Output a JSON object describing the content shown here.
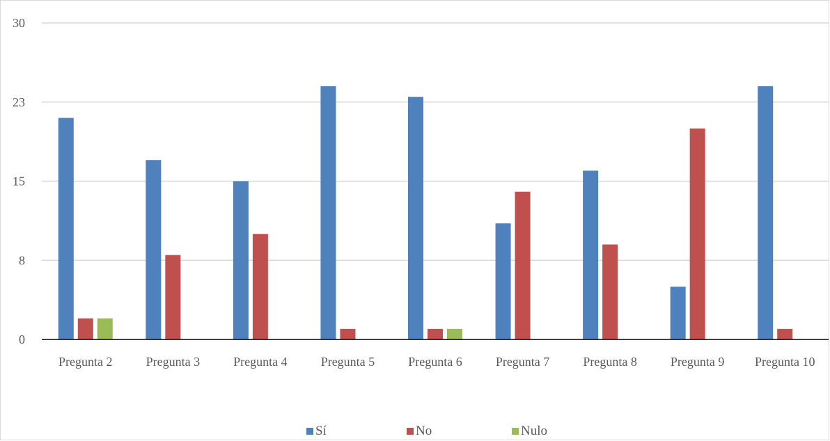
{
  "chart_data": {
    "type": "bar",
    "categories": [
      "Pregunta 2",
      "Pregunta 3",
      "Pregunta 4",
      "Pregunta 5",
      "Pregunta 6",
      "Pregunta 7",
      "Pregunta 8",
      "Pregunta 9",
      "Pregunta 10"
    ],
    "series": [
      {
        "name": "Sí",
        "color": "#4F81BD",
        "values": [
          21,
          17,
          15,
          24,
          23,
          11,
          16,
          5,
          24
        ]
      },
      {
        "name": "No",
        "color": "#C0504D",
        "values": [
          2,
          8,
          10,
          1,
          1,
          14,
          9,
          20,
          1
        ]
      },
      {
        "name": "Nulo",
        "color": "#9BBB59",
        "values": [
          2,
          0,
          0,
          0,
          1,
          0,
          0,
          0,
          0
        ]
      }
    ],
    "y_ticks": [
      "0",
      "8",
      "15",
      "23",
      "30"
    ],
    "ylim": [
      0,
      30
    ],
    "grid": true,
    "legend_position": "bottom"
  }
}
